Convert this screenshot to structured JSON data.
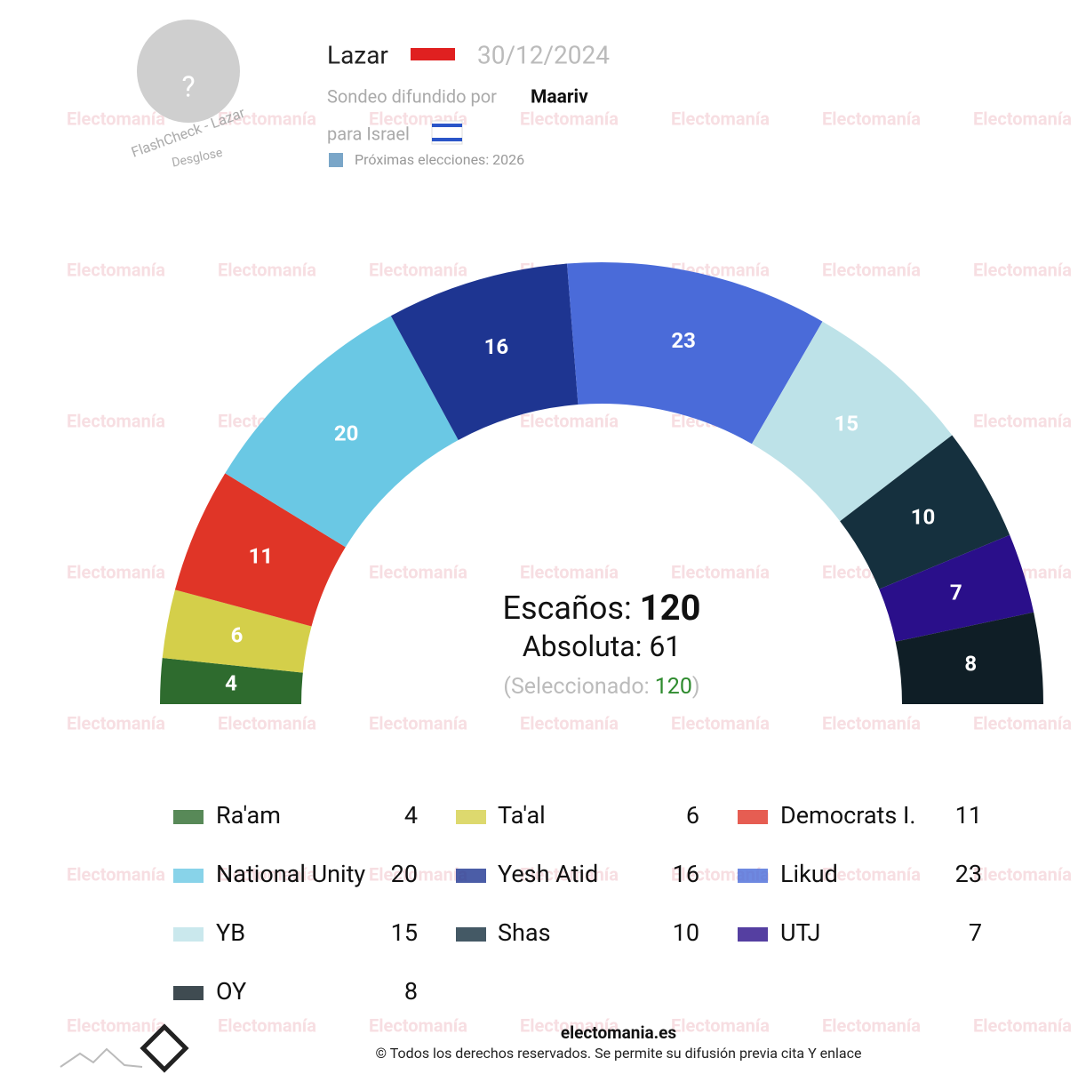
{
  "header": {
    "watermark": "Electomanía",
    "avatar": "?",
    "avatar_caption": "FlashCheck - Lazar",
    "avatar_link": "Desglose",
    "pollster": "Lazar",
    "date": "30/12/2024",
    "spread_by": "Sondeo difundido por",
    "media": "Maariv",
    "for_country": "para Israel",
    "next_elections": "Próximas elecciones: 2026"
  },
  "chart_data": {
    "type": "semicircle",
    "series": [
      {
        "name": "Ra'am",
        "color": "#2e6b2e",
        "values": [
          4
        ]
      },
      {
        "name": "Ta'al",
        "color": "#d4cf4a",
        "values": [
          6
        ]
      },
      {
        "name": "Democrats I.",
        "color": "#e03527",
        "values": [
          11
        ]
      },
      {
        "name": "National Unity",
        "color": "#6ac8e4",
        "values": [
          20
        ]
      },
      {
        "name": "Yesh Atid",
        "color": "#1e3591",
        "values": [
          16
        ]
      },
      {
        "name": "Likud",
        "color": "#4a6bd9",
        "values": [
          23
        ]
      },
      {
        "name": "YB",
        "color": "#bde2e8",
        "values": [
          15
        ]
      },
      {
        "name": "Shas",
        "color": "#15303e",
        "values": [
          10
        ]
      },
      {
        "name": "UTJ",
        "color": "#2a0f8a",
        "values": [
          7
        ]
      },
      {
        "name": "OY",
        "color": "#0f1e26",
        "values": [
          8
        ]
      }
    ],
    "seats_label": "Escaños:",
    "seats": 120,
    "majority_label": "Absoluta:",
    "majority": 61,
    "selected_open": "(Seleccionado:",
    "selected": 120,
    "selected_close": ")"
  },
  "footer": {
    "site": "electomania.es",
    "rights": "© Todos los derechos reservados. Se permite su difusión previa cita Y enlace"
  }
}
